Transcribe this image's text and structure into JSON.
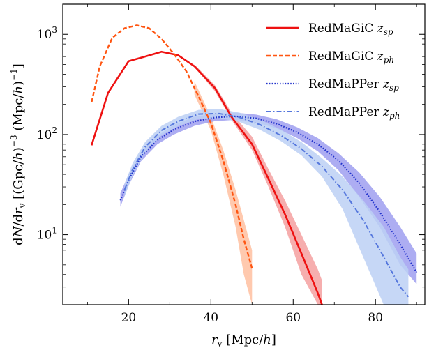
{
  "chart_data": {
    "type": "line",
    "title": "",
    "xlabel": "r_v [Mpc/h]",
    "ylabel": "dN/dr_v [(Gpc/h)^-3 (Mpc/h)^-1]",
    "xlim": [
      4,
      92
    ],
    "ylim": [
      2,
      2000
    ],
    "yscale": "log",
    "grid": false,
    "legend_position": "top-right",
    "x_ticks": [
      20,
      40,
      60,
      80
    ],
    "y_ticks": [
      10,
      100,
      1000
    ],
    "series": [
      {
        "name": "RedMaGiC z_sp",
        "label_main": "RedMaGiC ",
        "label_var": "z",
        "label_sub": "sp",
        "style": "solid",
        "color": "#ee1111",
        "band_color": "#f5a0a0",
        "x": [
          11,
          15,
          20,
          24,
          28,
          32,
          36,
          41,
          45,
          50,
          54,
          58,
          62,
          66,
          67
        ],
        "y": [
          78,
          260,
          540,
          600,
          670,
          620,
          480,
          290,
          150,
          80,
          36,
          16,
          6.5,
          2.6,
          2.0
        ],
        "band_x": [
          36,
          41,
          45,
          50,
          54,
          58,
          62,
          66,
          67
        ],
        "band_low": [
          470,
          270,
          140,
          70,
          30,
          12,
          4,
          2.0,
          2.0
        ],
        "band_high": [
          500,
          310,
          165,
          95,
          45,
          22,
          10,
          4.5,
          3.5
        ]
      },
      {
        "name": "RedMaGiC z_ph",
        "label_main": "RedMaGiC ",
        "label_var": "z",
        "label_sub": "ph",
        "style": "dashed",
        "color": "#ff5511",
        "band_color": "#ffc0a0",
        "x": [
          11,
          13,
          16,
          19,
          22,
          25,
          28,
          31,
          34,
          37,
          40,
          43,
          46,
          48,
          50
        ],
        "y": [
          210,
          480,
          920,
          1150,
          1230,
          1150,
          900,
          640,
          430,
          240,
          130,
          55,
          20,
          9,
          4.6
        ],
        "band_x": [
          36,
          40,
          43,
          46,
          48,
          50
        ],
        "band_low": [
          250,
          110,
          40,
          12,
          4,
          2.0
        ],
        "band_high": [
          340,
          150,
          70,
          28,
          14,
          7
        ]
      },
      {
        "name": "RedMaPPer z_sp",
        "label_main": "RedMaPPer ",
        "label_var": "z",
        "label_sub": "sp",
        "style": "dotted",
        "color": "#2233cc",
        "band_color": "#9f9ff0",
        "x": [
          18,
          20,
          23,
          27,
          31,
          36,
          41,
          46,
          51,
          56,
          61,
          66,
          71,
          76,
          81,
          86,
          90
        ],
        "y": [
          22,
          35,
          60,
          88,
          112,
          135,
          148,
          152,
          145,
          128,
          105,
          80,
          55,
          33,
          17,
          8,
          4.2
        ],
        "band_x": [
          18,
          20,
          23,
          27,
          31,
          36,
          41,
          46,
          51,
          56,
          61,
          66,
          71,
          76,
          81,
          86,
          90
        ],
        "band_low": [
          19,
          31,
          54,
          80,
          100,
          122,
          136,
          140,
          132,
          115,
          92,
          68,
          44,
          24,
          12,
          5,
          3.2
        ],
        "band_high": [
          26,
          40,
          67,
          97,
          125,
          150,
          162,
          165,
          158,
          142,
          118,
          92,
          65,
          42,
          24,
          12,
          6.5
        ]
      },
      {
        "name": "RedMaPPer z_ph",
        "label_main": "RedMaPPer ",
        "label_var": "z",
        "label_sub": "ph",
        "style": "dashdot",
        "color": "#5577dd",
        "band_color": "#bcd0f5",
        "x": [
          19,
          21,
          24,
          28,
          32,
          37,
          42,
          47,
          52,
          57,
          62,
          67,
          72,
          77,
          82,
          86,
          88
        ],
        "y": [
          28,
          45,
          75,
          110,
          135,
          160,
          162,
          148,
          125,
          98,
          72,
          48,
          28,
          14,
          6,
          3,
          2.4
        ],
        "band_x": [
          19,
          21,
          24,
          28,
          32,
          37,
          42,
          47,
          52,
          57,
          62,
          67,
          72,
          77,
          82,
          86,
          88
        ],
        "band_low": [
          24,
          39,
          66,
          98,
          121,
          143,
          146,
          133,
          111,
          86,
          62,
          38,
          18,
          6,
          2.0,
          2.0,
          2.0
        ],
        "band_high": [
          32,
          52,
          84,
          122,
          150,
          176,
          180,
          165,
          140,
          112,
          84,
          58,
          38,
          22,
          12,
          6,
          4.5
        ]
      }
    ]
  }
}
